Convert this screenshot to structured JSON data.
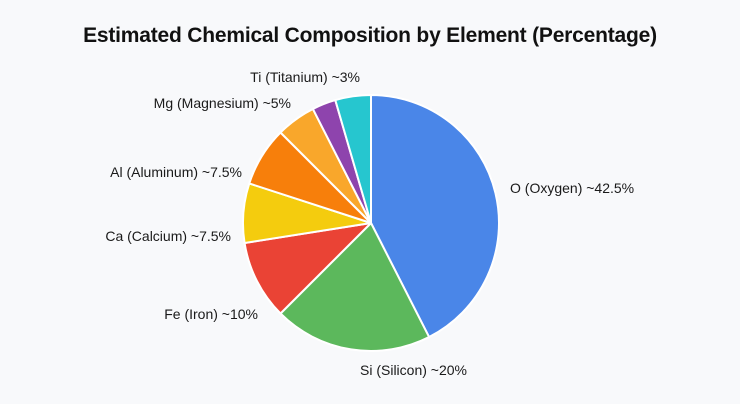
{
  "chart_data": {
    "type": "pie",
    "title": "Estimated Chemical Composition by Element (Percentage)",
    "slices": [
      {
        "label": "O (Oxygen) ~42.5%",
        "value": 42.5,
        "color": "#4a86e8"
      },
      {
        "label": "Si (Silicon) ~20%",
        "value": 20,
        "color": "#5cb85c"
      },
      {
        "label": "Fe (Iron) ~10%",
        "value": 10,
        "color": "#ea4335"
      },
      {
        "label": "Ca (Calcium) ~7.5%",
        "value": 7.5,
        "color": "#f4cc0e"
      },
      {
        "label": "Al (Aluminum) ~7.5%",
        "value": 7.5,
        "color": "#f77f0b"
      },
      {
        "label": "Mg (Magnesium) ~5%",
        "value": 5,
        "color": "#f9a72b"
      },
      {
        "label": "Ti (Titanium) ~3%",
        "value": 3,
        "color": "#8e44ad"
      },
      {
        "label": "",
        "value": 4.5,
        "color": "#26c6cf"
      }
    ],
    "legend": "none"
  }
}
